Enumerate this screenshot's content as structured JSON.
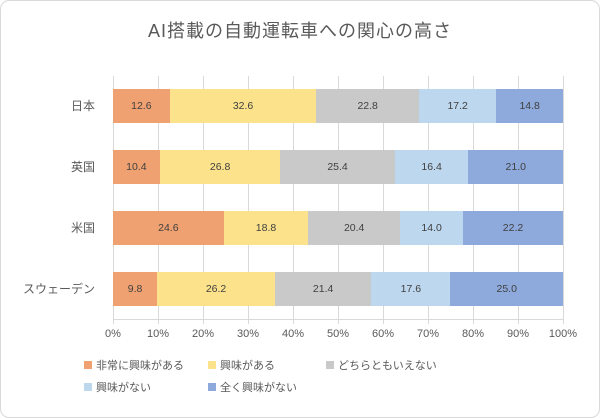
{
  "chart_data": {
    "type": "bar",
    "orientation": "horizontal",
    "stacked": true,
    "title": "AI搭載の自動運転車への関心の高さ",
    "categories": [
      "日本",
      "英国",
      "米国",
      "スウェーデン"
    ],
    "series": [
      {
        "name": "非常に興味がある",
        "color": "#F0A171",
        "values": [
          12.6,
          10.4,
          24.6,
          9.8
        ]
      },
      {
        "name": "興味がある",
        "color": "#FBE28B",
        "values": [
          32.6,
          26.8,
          18.8,
          26.2
        ]
      },
      {
        "name": "どちらともいえない",
        "color": "#C9C9C9",
        "values": [
          22.8,
          25.4,
          20.4,
          21.4
        ]
      },
      {
        "name": "興味がない",
        "color": "#BDD7EE",
        "values": [
          17.2,
          16.4,
          14.0,
          17.6
        ]
      },
      {
        "name": "全く興味がない",
        "color": "#8EA9DB",
        "values": [
          14.8,
          21.0,
          22.2,
          25.0
        ]
      }
    ],
    "x_axis": {
      "tick_labels": [
        "0%",
        "10%",
        "20%",
        "30%",
        "40%",
        "50%",
        "60%",
        "70%",
        "80%",
        "90%",
        "100%"
      ],
      "min": 0,
      "max": 100,
      "grid": true
    },
    "value_decimals": 1,
    "legend_position": "bottom"
  },
  "colors": {
    "title_text": "#595959",
    "axis_text": "#595959",
    "data_label_text": "#404040",
    "gridline": "#D9D9D9",
    "frame_border": "#D9D9D9",
    "background": "#FFFFFF"
  }
}
